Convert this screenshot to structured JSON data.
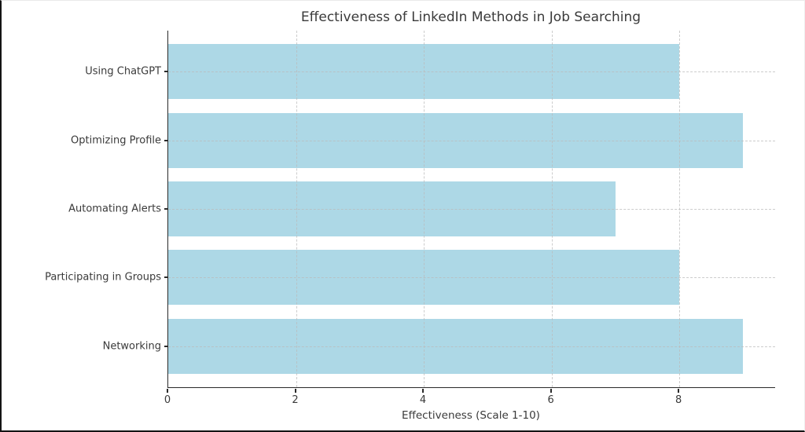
{
  "chart_data": {
    "type": "bar",
    "orientation": "horizontal",
    "title": "Effectiveness of LinkedIn Methods in Job Searching",
    "categories": [
      "Using ChatGPT",
      "Optimizing Profile",
      "Automating Alerts",
      "Participating in Groups",
      "Networking"
    ],
    "values": [
      8,
      9,
      7,
      8,
      9
    ],
    "xlabel": "Effectiveness (Scale 1-10)",
    "ylabel": "",
    "xlim": [
      0,
      9.5
    ],
    "xticks": [
      0,
      2,
      4,
      6,
      8
    ],
    "legend": "none",
    "grid": "dashed gridlines on both axes, drawn over bars"
  },
  "colors": {
    "bar": "#ADD8E6",
    "text": "#3a3a3a",
    "spine": "#2a2a2a",
    "grid": "#bbbbbb",
    "background": "#ffffff"
  }
}
